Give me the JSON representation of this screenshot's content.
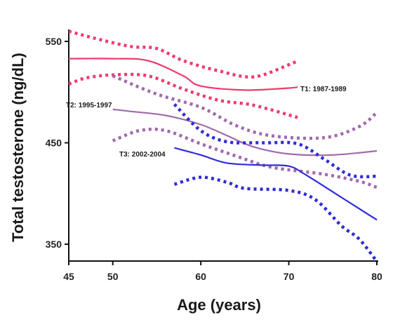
{
  "chart_data": {
    "type": "line",
    "title": "",
    "xlabel": "Age (years)",
    "ylabel": "Total testosterone (ng/dL)",
    "xlim": [
      45,
      80
    ],
    "ylim": [
      335,
      565
    ],
    "x_ticks": [
      45,
      50,
      60,
      70,
      80
    ],
    "y_ticks": [
      350,
      450,
      550
    ],
    "grid": false,
    "series": [
      {
        "name": "T1: 1987-1989",
        "color": "#ee3b6e",
        "mean": [
          [
            45,
            533
          ],
          [
            50,
            533
          ],
          [
            54,
            531
          ],
          [
            58,
            516
          ],
          [
            60,
            506
          ],
          [
            65,
            502
          ],
          [
            70,
            504
          ],
          [
            71,
            505
          ]
        ],
        "ci_upper": [
          [
            45,
            560
          ],
          [
            48,
            553
          ],
          [
            52,
            545
          ],
          [
            55,
            543
          ],
          [
            58,
            531
          ],
          [
            62,
            521
          ],
          [
            66,
            515
          ],
          [
            70,
            527
          ],
          [
            71,
            531
          ]
        ],
        "ci_lower": [
          [
            45,
            508
          ],
          [
            47,
            514
          ],
          [
            50,
            517
          ],
          [
            54,
            516
          ],
          [
            58,
            503
          ],
          [
            62,
            492
          ],
          [
            66,
            487
          ],
          [
            71,
            475
          ]
        ]
      },
      {
        "name": "T2: 1995-1997",
        "color": "#a06aab",
        "mean": [
          [
            50,
            483
          ],
          [
            52,
            481
          ],
          [
            56,
            477
          ],
          [
            60,
            468
          ],
          [
            63,
            457
          ],
          [
            66,
            446
          ],
          [
            70,
            439
          ],
          [
            75,
            438
          ],
          [
            80,
            442
          ]
        ],
        "ci_upper": [
          [
            50,
            516
          ],
          [
            55,
            498
          ],
          [
            60,
            485
          ],
          [
            64,
            467
          ],
          [
            68,
            457
          ],
          [
            74,
            455
          ],
          [
            78,
            466
          ],
          [
            80,
            480
          ]
        ],
        "ci_lower": [
          [
            50,
            452
          ],
          [
            53,
            462
          ],
          [
            56,
            462
          ],
          [
            60,
            449
          ],
          [
            64,
            437
          ],
          [
            68,
            426
          ],
          [
            74,
            419
          ],
          [
            78,
            412
          ],
          [
            80,
            406
          ]
        ]
      },
      {
        "name": "T3: 2002-2004",
        "color": "#2e2bd8",
        "mean": [
          [
            57,
            445
          ],
          [
            60,
            438
          ],
          [
            63,
            430
          ],
          [
            67,
            428
          ],
          [
            70,
            427
          ],
          [
            72,
            418
          ],
          [
            76,
            396
          ],
          [
            80,
            374
          ]
        ],
        "ci_upper": [
          [
            57,
            488
          ],
          [
            60,
            462
          ],
          [
            63,
            451
          ],
          [
            67,
            450
          ],
          [
            71,
            449
          ],
          [
            74,
            434
          ],
          [
            77,
            418
          ],
          [
            80,
            417
          ]
        ],
        "ci_lower": [
          [
            57,
            409
          ],
          [
            60,
            416
          ],
          [
            63,
            411
          ],
          [
            65,
            405
          ],
          [
            70,
            403
          ],
          [
            73,
            394
          ],
          [
            76,
            368
          ],
          [
            78,
            355
          ],
          [
            80,
            333
          ]
        ]
      }
    ],
    "annotations": [
      "T1: 1987-1989",
      "T2: 1995-1997",
      "T3: 2002-2004"
    ]
  }
}
